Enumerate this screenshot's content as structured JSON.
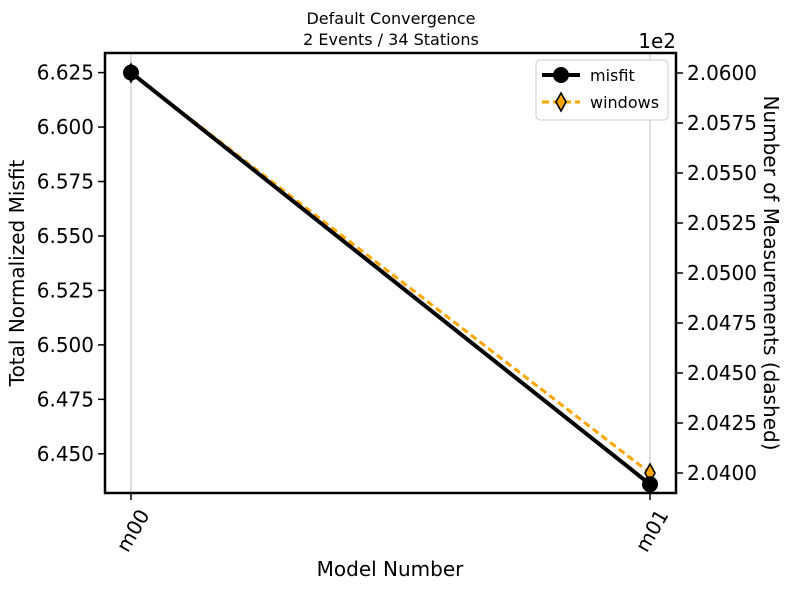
{
  "chart_data": {
    "type": "line",
    "title": "Default Convergence",
    "subtitle": "2 Events / 34 Stations",
    "xlabel": "Model Number",
    "ylabel": "Total Normalized Misfit",
    "y2label": "Number of Measurements (dashed)",
    "y2_offset_text": "1e2",
    "categories": [
      "m00",
      "m01"
    ],
    "ylim": [
      6.432,
      6.634
    ],
    "yticks": [
      "6.625",
      "6.600",
      "6.575",
      "6.550",
      "6.525",
      "6.500",
      "6.475",
      "6.450"
    ],
    "ytick_values": [
      6.625,
      6.6,
      6.575,
      6.55,
      6.525,
      6.5,
      6.475,
      6.45
    ],
    "y2lim": [
      2.039,
      2.061
    ],
    "y2ticks": [
      "2.0600",
      "2.0575",
      "2.0550",
      "2.0525",
      "2.0500",
      "2.0475",
      "2.0450",
      "2.0425",
      "2.0400"
    ],
    "y2tick_values": [
      2.06,
      2.0575,
      2.055,
      2.0525,
      2.05,
      2.0475,
      2.045,
      2.0425,
      2.04
    ],
    "grid": "vertical",
    "legend_position": "top-right",
    "series": [
      {
        "name": "misfit",
        "axis": "left",
        "style": "solid",
        "marker": "circle",
        "color": "#000000",
        "values": [
          6.625,
          6.436
        ]
      },
      {
        "name": "windows",
        "axis": "right",
        "style": "dashed",
        "marker": "diamond",
        "color": "#ffa500",
        "values": [
          2.06,
          2.04
        ]
      }
    ]
  }
}
